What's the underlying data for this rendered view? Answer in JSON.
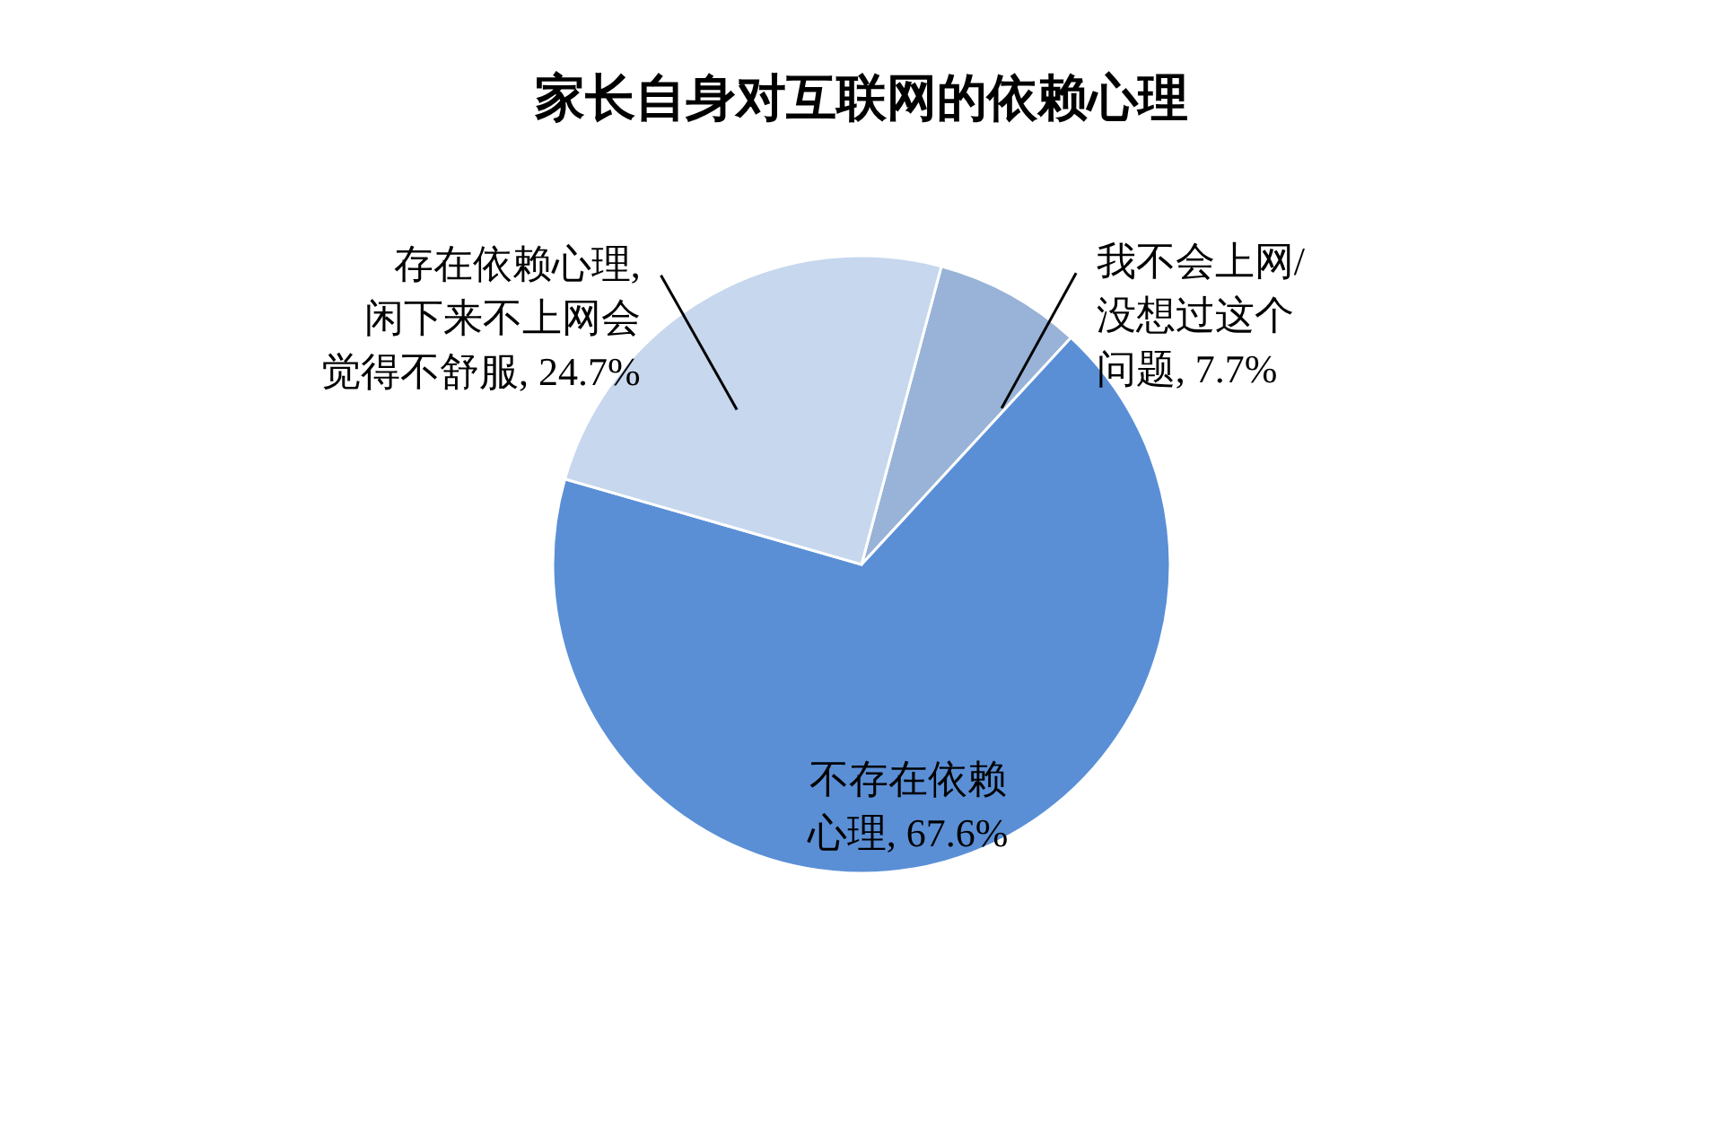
{
  "chart_data": {
    "type": "pie",
    "title": "家长自身对互联网的依赖心理",
    "categories": [
      "我不会上网/没想过这个问题",
      "不存在依赖心理",
      "存在依赖心理,闲下来不上网会觉得不舒服"
    ],
    "values": [
      7.7,
      67.6,
      24.7
    ],
    "value_labels": [
      "7.7%",
      "67.6%",
      "24.7%"
    ],
    "colors": [
      "#98b3d7",
      "#5a8fd6",
      "#c6d7ee"
    ]
  }
}
